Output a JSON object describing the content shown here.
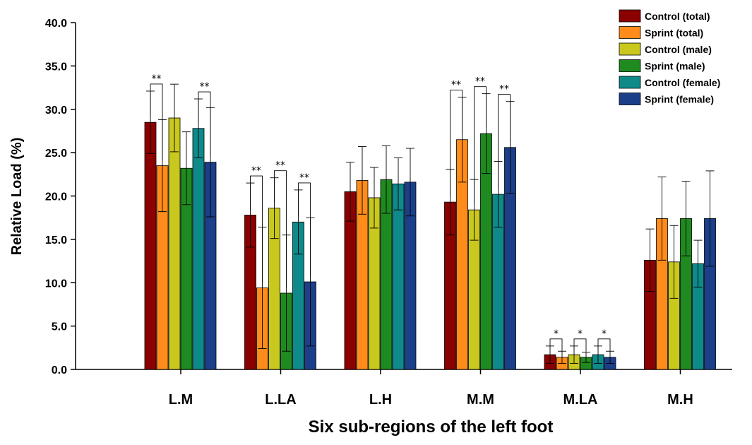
{
  "chart_data": {
    "type": "bar",
    "xlabel": "Six sub-regions of the left foot",
    "ylabel": "Relative Load (%)",
    "ylim": [
      0,
      40
    ],
    "yticks": [
      "0.0",
      "5.0",
      "10.0",
      "15.0",
      "20.0",
      "25.0",
      "30.0",
      "35.0",
      "40.0"
    ],
    "categories": [
      "L.M",
      "L.LA",
      "L.H",
      "M.M",
      "M.LA",
      "M.H"
    ],
    "legend_position": "top-right",
    "grid": false,
    "series": [
      {
        "name": "Control (total)",
        "color": "#8b0000",
        "values": [
          28.5,
          17.8,
          20.5,
          19.3,
          1.7,
          12.6
        ],
        "errors": [
          3.6,
          3.7,
          3.4,
          3.8,
          1.0,
          3.6
        ]
      },
      {
        "name": "Sprint (total)",
        "color": "#ff8c1a",
        "values": [
          23.5,
          9.4,
          21.8,
          26.5,
          1.4,
          17.4
        ],
        "errors": [
          5.3,
          7.0,
          3.9,
          4.9,
          0.7,
          4.8
        ]
      },
      {
        "name": "Control (male)",
        "color": "#c8c81e",
        "values": [
          29.0,
          18.6,
          19.8,
          18.4,
          1.7,
          12.4
        ],
        "errors": [
          3.9,
          3.5,
          3.5,
          3.5,
          1.0,
          4.2
        ]
      },
      {
        "name": "Sprint (male)",
        "color": "#1f8a1f",
        "values": [
          23.2,
          8.8,
          21.9,
          27.2,
          1.4,
          17.4
        ],
        "errors": [
          4.2,
          6.7,
          3.9,
          4.6,
          0.6,
          4.3
        ]
      },
      {
        "name": "Control (female)",
        "color": "#0e8a8a",
        "values": [
          27.8,
          17.0,
          21.4,
          20.2,
          1.7,
          12.2
        ],
        "errors": [
          3.4,
          3.7,
          3.0,
          3.8,
          1.0,
          2.7
        ]
      },
      {
        "name": "Sprint (female)",
        "color": "#1c3f8a",
        "values": [
          23.9,
          10.1,
          21.6,
          25.6,
          1.4,
          17.4
        ],
        "errors": [
          6.3,
          7.4,
          3.9,
          5.3,
          0.7,
          5.5
        ]
      }
    ],
    "significance": [
      {
        "category": "L.M",
        "pair": [
          0,
          1
        ],
        "label": "**"
      },
      {
        "category": "L.M",
        "pair": [
          4,
          5
        ],
        "label": "**"
      },
      {
        "category": "L.LA",
        "pair": [
          0,
          1
        ],
        "label": "**"
      },
      {
        "category": "L.LA",
        "pair": [
          2,
          3
        ],
        "label": "**"
      },
      {
        "category": "L.LA",
        "pair": [
          4,
          5
        ],
        "label": "**"
      },
      {
        "category": "M.M",
        "pair": [
          0,
          1
        ],
        "label": "**"
      },
      {
        "category": "M.M",
        "pair": [
          2,
          3
        ],
        "label": "**"
      },
      {
        "category": "M.M",
        "pair": [
          4,
          5
        ],
        "label": "**"
      },
      {
        "category": "M.LA",
        "pair": [
          0,
          1
        ],
        "label": "*"
      },
      {
        "category": "M.LA",
        "pair": [
          2,
          3
        ],
        "label": "*"
      },
      {
        "category": "M.LA",
        "pair": [
          4,
          5
        ],
        "label": "*"
      }
    ]
  }
}
